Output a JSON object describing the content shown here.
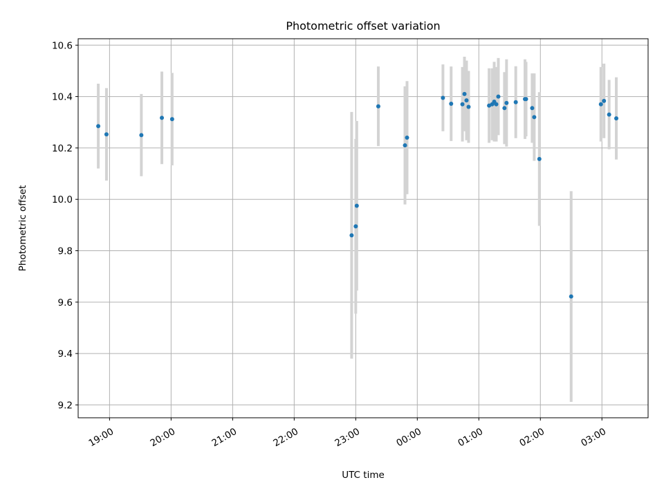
{
  "chart_data": {
    "type": "scatter",
    "title": "Photometric offset variation",
    "xlabel": "UTC time",
    "ylabel": "Photometric offset",
    "grid": true,
    "xlim_hours": [
      18.49,
      27.75
    ],
    "ylim": [
      9.15,
      10.625
    ],
    "x_ticks": [
      {
        "label": "19:00",
        "hour": 19
      },
      {
        "label": "20:00",
        "hour": 20
      },
      {
        "label": "21:00",
        "hour": 21
      },
      {
        "label": "22:00",
        "hour": 22
      },
      {
        "label": "23:00",
        "hour": 23
      },
      {
        "label": "00:00",
        "hour": 24
      },
      {
        "label": "01:00",
        "hour": 25
      },
      {
        "label": "02:00",
        "hour": 26
      },
      {
        "label": "03:00",
        "hour": 27
      }
    ],
    "y_ticks": [
      "9.2",
      "9.4",
      "9.6",
      "9.8",
      "10.0",
      "10.2",
      "10.4",
      "10.6"
    ],
    "marker_color": "#1f77b4",
    "errorbar_color": "#d3d3d3",
    "points": [
      {
        "x": "18:49",
        "y": 10.285,
        "yerr": 0.165
      },
      {
        "x": "18:57",
        "y": 10.253,
        "yerr": 0.18
      },
      {
        "x": "19:31",
        "y": 10.25,
        "yerr": 0.16
      },
      {
        "x": "19:51",
        "y": 10.317,
        "yerr": 0.18
      },
      {
        "x": "20:01",
        "y": 10.312,
        "yerr": 0.18
      },
      {
        "x": "22:56",
        "y": 9.86,
        "yerr": 0.48
      },
      {
        "x": "23:00",
        "y": 9.895,
        "yerr": 0.34
      },
      {
        "x": "23:01",
        "y": 9.975,
        "yerr": 0.33
      },
      {
        "x": "23:22",
        "y": 10.362,
        "yerr": 0.155
      },
      {
        "x": "23:48",
        "y": 10.21,
        "yerr": 0.23
      },
      {
        "x": "23:50",
        "y": 10.24,
        "yerr": 0.22
      },
      {
        "x": "00:25",
        "y": 10.395,
        "yerr": 0.13
      },
      {
        "x": "00:33",
        "y": 10.372,
        "yerr": 0.145
      },
      {
        "x": "00:44",
        "y": 10.37,
        "yerr": 0.145
      },
      {
        "x": "00:46",
        "y": 10.41,
        "yerr": 0.145
      },
      {
        "x": "00:48",
        "y": 10.385,
        "yerr": 0.155
      },
      {
        "x": "00:50",
        "y": 10.36,
        "yerr": 0.14
      },
      {
        "x": "01:10",
        "y": 10.365,
        "yerr": 0.145
      },
      {
        "x": "01:13",
        "y": 10.37,
        "yerr": 0.14
      },
      {
        "x": "01:15",
        "y": 10.38,
        "yerr": 0.155
      },
      {
        "x": "01:17",
        "y": 10.37,
        "yerr": 0.145
      },
      {
        "x": "01:19",
        "y": 10.4,
        "yerr": 0.15
      },
      {
        "x": "01:25",
        "y": 10.355,
        "yerr": 0.14
      },
      {
        "x": "01:27",
        "y": 10.375,
        "yerr": 0.17
      },
      {
        "x": "01:36",
        "y": 10.378,
        "yerr": 0.14
      },
      {
        "x": "01:45",
        "y": 10.39,
        "yerr": 0.155
      },
      {
        "x": "01:46",
        "y": 10.39,
        "yerr": 0.145
      },
      {
        "x": "01:52",
        "y": 10.355,
        "yerr": 0.135
      },
      {
        "x": "01:54",
        "y": 10.32,
        "yerr": 0.17
      },
      {
        "x": "01:59",
        "y": 10.157,
        "yerr": 0.26
      },
      {
        "x": "02:30",
        "y": 9.622,
        "yerr": 0.41
      },
      {
        "x": "02:59",
        "y": 10.37,
        "yerr": 0.145
      },
      {
        "x": "03:02",
        "y": 10.383,
        "yerr": 0.145
      },
      {
        "x": "03:07",
        "y": 10.33,
        "yerr": 0.135
      },
      {
        "x": "03:14",
        "y": 10.315,
        "yerr": 0.16
      }
    ]
  }
}
